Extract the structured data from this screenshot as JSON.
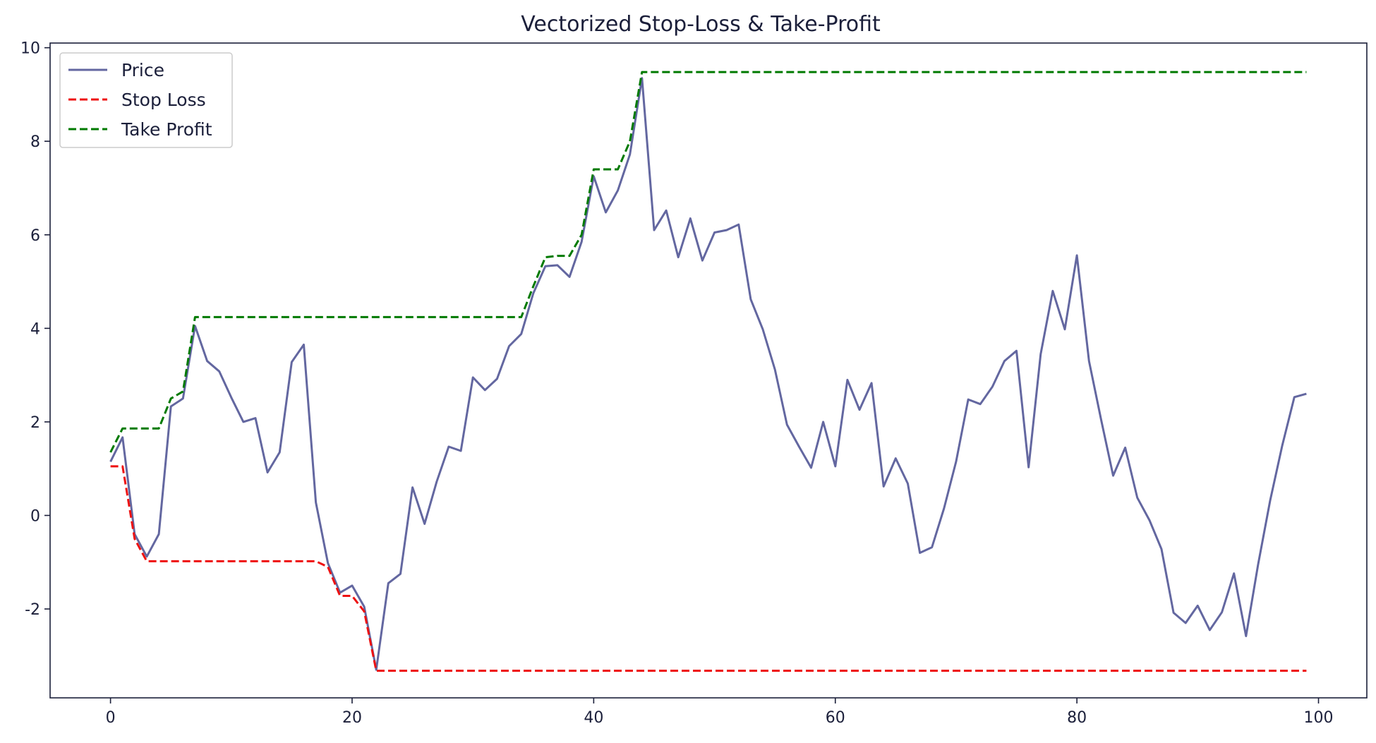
{
  "chart_data": {
    "type": "line",
    "title": "Vectorized Stop-Loss & Take-Profit",
    "xlabel": "",
    "ylabel": "",
    "xlim": [
      -5,
      104
    ],
    "ylim": [
      -3.9,
      10.1
    ],
    "xticks": [
      0,
      20,
      40,
      60,
      80,
      100
    ],
    "yticks": [
      -2,
      0,
      2,
      4,
      6,
      8,
      10
    ],
    "xtick_labels": [
      "0",
      "20",
      "40",
      "60",
      "80",
      "100"
    ],
    "ytick_labels": [
      "-2",
      "0",
      "2",
      "4",
      "6",
      "8",
      "10"
    ],
    "grid": false,
    "legend_position": "top-left",
    "x": [
      0,
      1,
      2,
      3,
      4,
      5,
      6,
      7,
      8,
      9,
      10,
      11,
      12,
      13,
      14,
      15,
      16,
      17,
      18,
      19,
      20,
      21,
      22,
      23,
      24,
      25,
      26,
      27,
      28,
      29,
      30,
      31,
      32,
      33,
      34,
      35,
      36,
      37,
      38,
      39,
      40,
      41,
      42,
      43,
      44,
      45,
      46,
      47,
      48,
      49,
      50,
      51,
      52,
      53,
      54,
      55,
      56,
      57,
      58,
      59,
      60,
      61,
      62,
      63,
      64,
      65,
      66,
      67,
      68,
      69,
      70,
      71,
      72,
      73,
      74,
      75,
      76,
      77,
      78,
      79,
      80,
      81,
      82,
      83,
      84,
      85,
      86,
      87,
      88,
      89,
      90,
      91,
      92,
      93,
      94,
      95,
      96,
      97,
      98,
      99
    ],
    "series": [
      {
        "name": "Price",
        "color": "#6367a0",
        "dash": "solid",
        "values": [
          1.15,
          1.67,
          -0.4,
          -0.88,
          -0.4,
          2.33,
          2.5,
          4.05,
          3.3,
          3.08,
          2.52,
          2.0,
          2.08,
          0.92,
          1.35,
          3.28,
          3.65,
          0.28,
          -1.02,
          -1.65,
          -1.5,
          -1.95,
          -3.3,
          -1.45,
          -1.25,
          0.6,
          -0.18,
          0.72,
          1.47,
          1.38,
          2.95,
          2.68,
          2.92,
          3.62,
          3.88,
          4.75,
          5.33,
          5.35,
          5.1,
          5.85,
          7.25,
          6.48,
          6.95,
          7.72,
          9.35,
          6.1,
          6.52,
          5.52,
          6.35,
          5.45,
          6.05,
          6.1,
          6.22,
          4.62,
          3.98,
          3.12,
          1.94,
          1.47,
          1.02,
          2.0,
          1.05,
          2.9,
          2.26,
          2.83,
          0.62,
          1.22,
          0.68,
          -0.8,
          -0.68,
          0.15,
          1.15,
          2.48,
          2.38,
          2.75,
          3.3,
          3.52,
          1.03,
          3.45,
          4.8,
          3.98,
          5.56,
          3.3,
          2.05,
          0.85,
          1.45,
          0.38,
          -0.1,
          -0.72,
          -2.08,
          -2.3,
          -1.93,
          -2.45,
          -2.07,
          -1.24,
          -2.58,
          -1.05,
          0.32,
          1.5,
          2.53,
          2.6
        ]
      },
      {
        "name": "Stop Loss",
        "color": "#ee1111",
        "dash": "dashed",
        "values": [
          1.05,
          1.05,
          -0.5,
          -0.98,
          -0.98,
          -0.98,
          -0.98,
          -0.98,
          -0.98,
          -0.98,
          -0.98,
          -0.98,
          -0.98,
          -0.98,
          -0.98,
          -0.98,
          -0.98,
          -0.98,
          -1.1,
          -1.72,
          -1.72,
          -2.05,
          -3.32,
          -3.32,
          -3.32,
          -3.32,
          -3.32,
          -3.32,
          -3.32,
          -3.32,
          -3.32,
          -3.32,
          -3.32,
          -3.32,
          -3.32,
          -3.32,
          -3.32,
          -3.32,
          -3.32,
          -3.32,
          -3.32,
          -3.32,
          -3.32,
          -3.32,
          -3.32,
          -3.32,
          -3.32,
          -3.32,
          -3.32,
          -3.32,
          -3.32,
          -3.32,
          -3.32,
          -3.32,
          -3.32,
          -3.32,
          -3.32,
          -3.32,
          -3.32,
          -3.32,
          -3.32,
          -3.32,
          -3.32,
          -3.32,
          -3.32,
          -3.32,
          -3.32,
          -3.32,
          -3.32,
          -3.32,
          -3.32,
          -3.32,
          -3.32,
          -3.32,
          -3.32,
          -3.32,
          -3.32,
          -3.32,
          -3.32,
          -3.32,
          -3.32,
          -3.32,
          -3.32,
          -3.32,
          -3.32,
          -3.32,
          -3.32,
          -3.32,
          -3.32,
          -3.32,
          -3.32,
          -3.32,
          -3.32,
          -3.32,
          -3.32,
          -3.32,
          -3.32,
          -3.32,
          -3.32,
          -3.32
        ]
      },
      {
        "name": "Take Profit",
        "color": "#007a00",
        "dash": "dashed",
        "values": [
          1.35,
          1.86,
          1.86,
          1.86,
          1.86,
          2.5,
          2.65,
          4.24,
          4.24,
          4.24,
          4.24,
          4.24,
          4.24,
          4.24,
          4.24,
          4.24,
          4.24,
          4.24,
          4.24,
          4.24,
          4.24,
          4.24,
          4.24,
          4.24,
          4.24,
          4.24,
          4.24,
          4.24,
          4.24,
          4.24,
          4.24,
          4.24,
          4.24,
          4.24,
          4.24,
          4.9,
          5.52,
          5.55,
          5.55,
          6.0,
          7.4,
          7.4,
          7.4,
          8.0,
          9.48,
          9.48,
          9.48,
          9.48,
          9.48,
          9.48,
          9.48,
          9.48,
          9.48,
          9.48,
          9.48,
          9.48,
          9.48,
          9.48,
          9.48,
          9.48,
          9.48,
          9.48,
          9.48,
          9.48,
          9.48,
          9.48,
          9.48,
          9.48,
          9.48,
          9.48,
          9.48,
          9.48,
          9.48,
          9.48,
          9.48,
          9.48,
          9.48,
          9.48,
          9.48,
          9.48,
          9.48,
          9.48,
          9.48,
          9.48,
          9.48,
          9.48,
          9.48,
          9.48,
          9.48,
          9.48,
          9.48,
          9.48,
          9.48,
          9.48,
          9.48,
          9.48,
          9.48,
          9.48,
          9.48,
          9.48
        ]
      }
    ]
  }
}
